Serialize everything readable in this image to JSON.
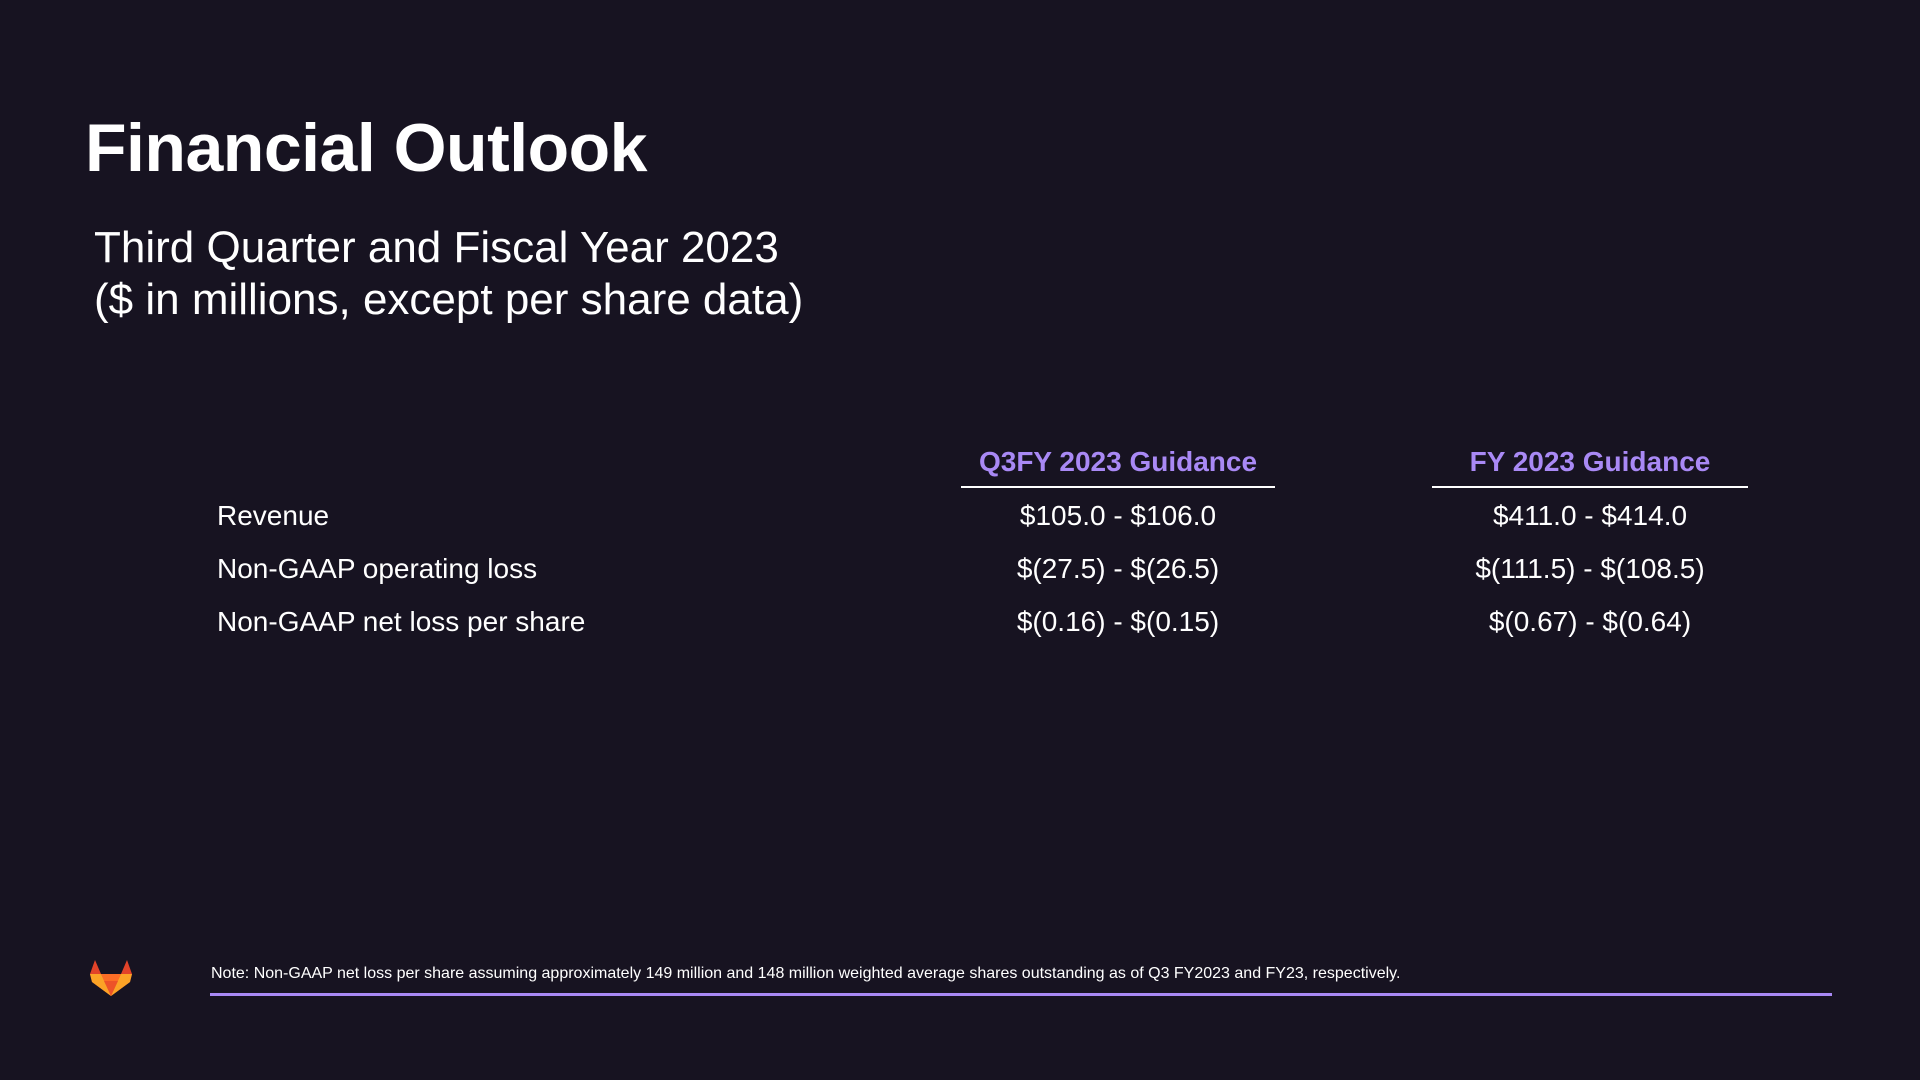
{
  "slide": {
    "title": "Financial Outlook",
    "subtitle_line1": "Third Quarter and Fiscal Year 2023",
    "subtitle_line2": "($ in millions, except per share data)"
  },
  "table": {
    "columns": [
      "Q3FY 2023 Guidance",
      "FY 2023 Guidance"
    ],
    "rows": [
      {
        "label": "Revenue",
        "q3": "$105.0 - $106.0",
        "fy": "$411.0 - $414.0"
      },
      {
        "label": "Non-GAAP operating loss",
        "q3": "$(27.5) - $(26.5)",
        "fy": "$(111.5) - $(108.5)"
      },
      {
        "label": "Non-GAAP net loss per share",
        "q3": "$(0.16) - $(0.15)",
        "fy": "$(0.67) - $(0.64)"
      }
    ]
  },
  "footer": {
    "note": "Note: Non-GAAP net loss per share assuming approximately 149 million and 148 million weighted average shares outstanding as of Q3 FY2023 and FY23, respectively.",
    "logo_icon": "gitlab-fox-logo-icon"
  },
  "colors": {
    "background": "#171321",
    "accent": "#a989f5",
    "text": "#ffffff"
  }
}
